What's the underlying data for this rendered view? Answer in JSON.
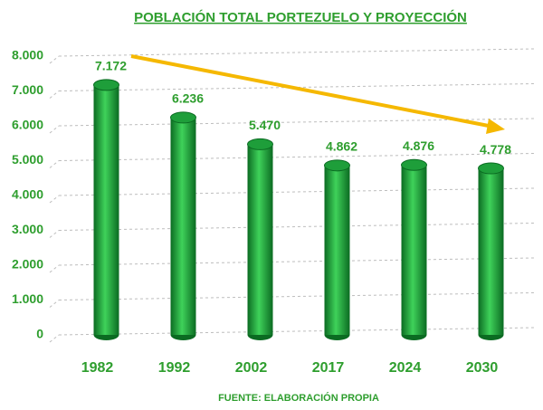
{
  "chart_data": {
    "type": "bar",
    "title": "POBLACIÓN TOTAL PORTEZUELO Y PROYECCIÓN",
    "source": "FUENTE: ELABORACIÓN PROPIA",
    "categories": [
      "1982",
      "1992",
      "2002",
      "2017",
      "2024",
      "2030"
    ],
    "values": [
      7172,
      6236,
      5470,
      4862,
      4876,
      4778
    ],
    "value_labels": [
      "7.172",
      "6.236",
      "5.470",
      "4.862",
      "4.876",
      "4.778"
    ],
    "color": "#1e9e3a",
    "ylim": [
      0,
      8000
    ],
    "yticks": [
      0,
      {
        "value": 1000,
        "label": "1.000"
      },
      {
        "value": 2000,
        "label": "2.000"
      },
      {
        "value": 3000,
        "label": "3.000"
      },
      {
        "value": 4000,
        "label": "4.000"
      },
      {
        "value": 5000,
        "label": "5.000"
      },
      {
        "value": 6000,
        "label": "6.000"
      },
      {
        "value": 7000,
        "label": "7.000"
      },
      {
        "value": 8000,
        "label": "8.000"
      }
    ],
    "grid": true
  }
}
